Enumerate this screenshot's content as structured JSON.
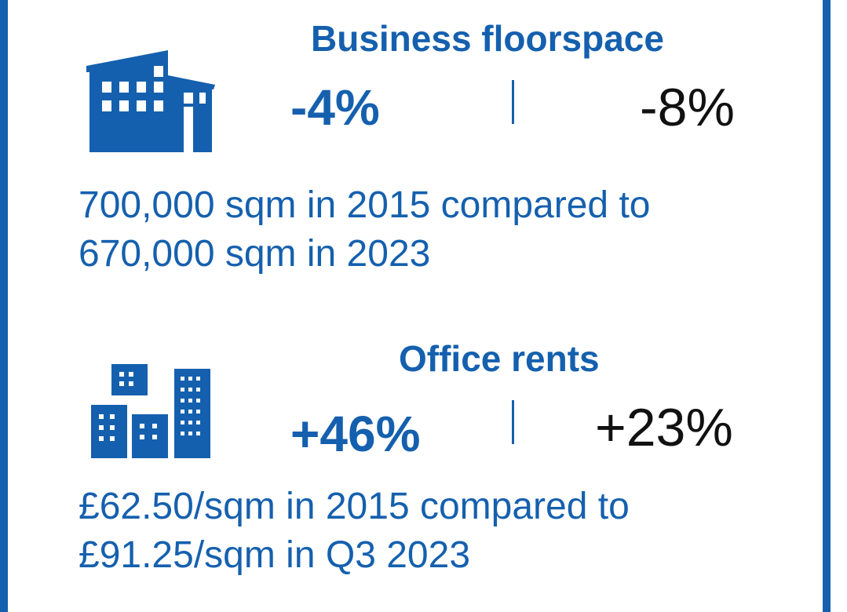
{
  "colors": {
    "brand_blue": "#1560ae",
    "text_dark": "#111111",
    "background": "#ffffff"
  },
  "floorspace": {
    "icon": "factory-building-icon",
    "title": "Business floorspace",
    "change_local": "-4%",
    "change_comparison": "-8%",
    "description_line1": "700,000 sqm in 2015 compared to",
    "description_line2": "670,000 sqm in 2023"
  },
  "rents": {
    "icon": "office-buildings-icon",
    "title": "Office rents",
    "change_local": "+46%",
    "change_comparison": "+23%",
    "description_line1": "£62.50/sqm in 2015 compared to",
    "description_line2": "£91.25/sqm in Q3 2023"
  }
}
